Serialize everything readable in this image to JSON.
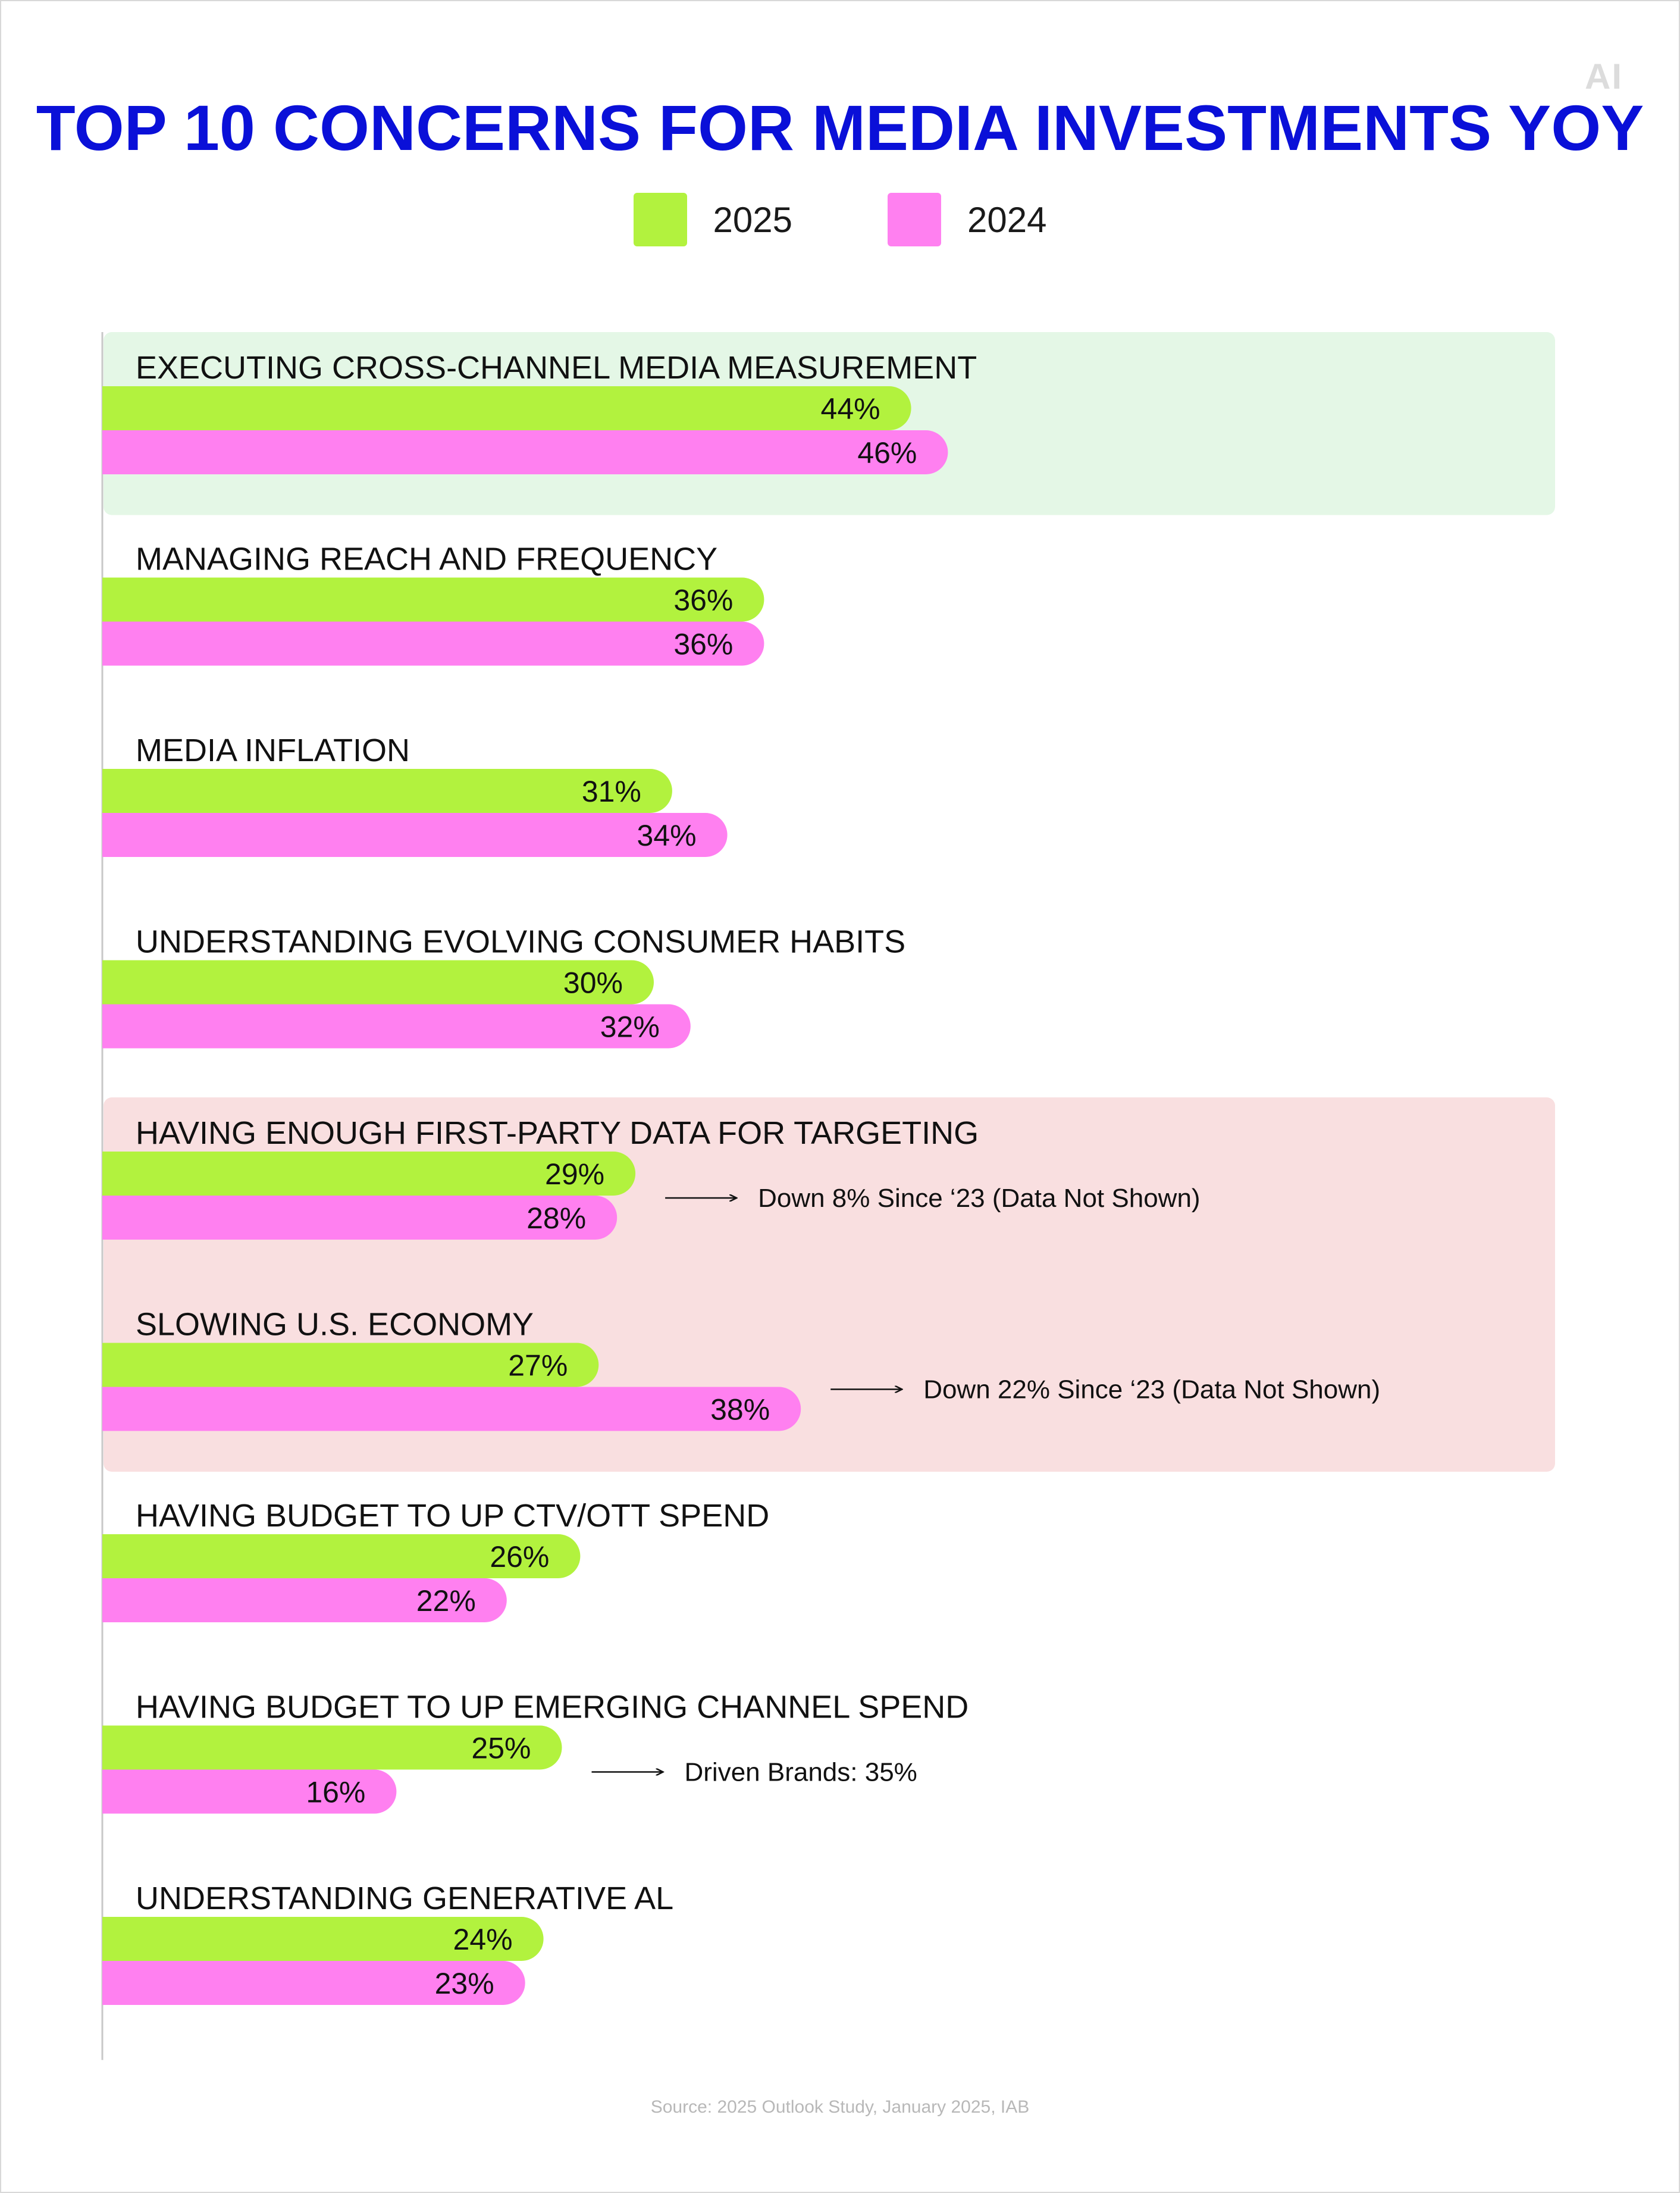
{
  "logo": "AI",
  "chart_data": {
    "type": "bar",
    "orientation": "horizontal",
    "title": "TOP 10 CONCERNS FOR MEDIA INVESTMENTS YOY",
    "categories": [
      "EXECUTING CROSS-CHANNEL MEDIA MEASUREMENT",
      "MANAGING REACH AND FREQUENCY",
      "MEDIA INFLATION",
      "UNDERSTANDING EVOLVING CONSUMER HABITS",
      "HAVING ENOUGH FIRST-PARTY DATA FOR TARGETING",
      "SLOWING U.S. ECONOMY",
      "HAVING BUDGET TO UP CTV/OTT SPEND",
      "HAVING BUDGET TO UP EMERGING CHANNEL SPEND",
      "UNDERSTANDING GENERATIVE AL"
    ],
    "series": [
      {
        "name": "2025",
        "color": "#b2f23e",
        "values": [
          44,
          36,
          31,
          30,
          29,
          27,
          26,
          25,
          24
        ],
        "labels": [
          "44%",
          "36%",
          "31%",
          "30%",
          "29%",
          "27%",
          "26%",
          "25%",
          "24%"
        ]
      },
      {
        "name": "2024",
        "color": "#ff80f0",
        "values": [
          46,
          36,
          34,
          32,
          28,
          38,
          22,
          16,
          23
        ],
        "labels": [
          "46%",
          "36%",
          "34%",
          "32%",
          "28%",
          "38%",
          "22%",
          "16%",
          "23%"
        ]
      }
    ],
    "annotations": [
      {
        "category_index": 4,
        "text": "Down 8% Since ‘23 (Data Not Shown)"
      },
      {
        "category_index": 5,
        "text": "Down 22% Since ‘23 (Data Not Shown)"
      },
      {
        "category_index": 7,
        "text": "Driven Brands: 35%"
      }
    ],
    "highlights": [
      {
        "category_indices": [
          0
        ],
        "color": "#e4f7e6"
      },
      {
        "category_indices": [
          4,
          5
        ],
        "color": "#f9dfe0"
      }
    ],
    "grid": false,
    "legend_position": "top-center"
  },
  "source": "Source: 2025 Outlook Study, January 2025, IAB"
}
